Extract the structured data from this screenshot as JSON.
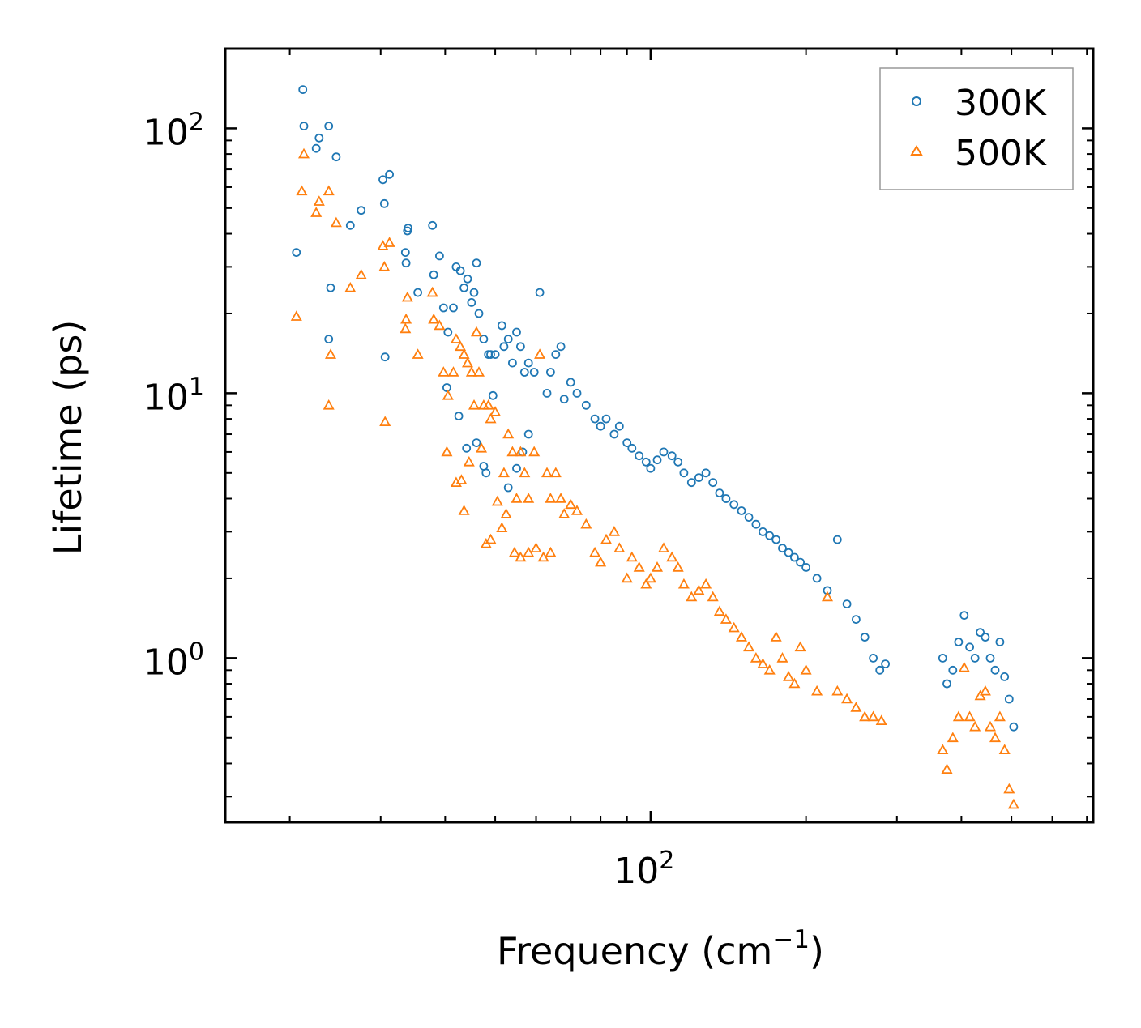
{
  "chart_data": {
    "type": "scatter",
    "xscale": "log",
    "yscale": "log",
    "xlabel": "Frequency (cm",
    "xlabel_sup": "−1",
    "xlabel_end": ")",
    "ylabel": "Lifetime (ps)",
    "xlim": [
      15,
      720
    ],
    "ylim": [
      0.24,
      200
    ],
    "x_major_ticks": [
      {
        "value": 100,
        "base": "10",
        "exp": "2"
      }
    ],
    "x_minor_ticks": [
      20,
      30,
      40,
      50,
      60,
      70,
      80,
      90,
      200,
      300,
      400,
      500,
      600,
      700
    ],
    "y_major_ticks": [
      {
        "value": 1,
        "base": "10",
        "exp": "0"
      },
      {
        "value": 10,
        "base": "10",
        "exp": "1"
      },
      {
        "value": 100,
        "base": "10",
        "exp": "2"
      }
    ],
    "y_minor_ticks": [
      0.3,
      0.4,
      0.5,
      0.6,
      0.7,
      0.8,
      0.9,
      2,
      3,
      4,
      5,
      6,
      7,
      8,
      9,
      20,
      30,
      40,
      50,
      60,
      70,
      80,
      90,
      200
    ],
    "legend_position": "top-right",
    "series": [
      {
        "name": "300K",
        "marker": "circle",
        "color": "#1f77b4",
        "points": [
          [
            21.2,
            140
          ],
          [
            21.3,
            102
          ],
          [
            22.5,
            84
          ],
          [
            22.8,
            92
          ],
          [
            23.8,
            102
          ],
          [
            24.6,
            78
          ],
          [
            26.2,
            43
          ],
          [
            27.5,
            49
          ],
          [
            30.3,
            64
          ],
          [
            30.5,
            52
          ],
          [
            31.2,
            67
          ],
          [
            33.8,
            41
          ],
          [
            33.9,
            42
          ],
          [
            20.6,
            34
          ],
          [
            24.0,
            25
          ],
          [
            23.8,
            16
          ],
          [
            30.6,
            13.7
          ],
          [
            33.6,
            31
          ],
          [
            33.5,
            34
          ],
          [
            35.4,
            24
          ],
          [
            37.8,
            43
          ],
          [
            38.0,
            28
          ],
          [
            39.0,
            33
          ],
          [
            39.7,
            21
          ],
          [
            40.3,
            10.5
          ],
          [
            40.5,
            17
          ],
          [
            41.5,
            21
          ],
          [
            42.0,
            30
          ],
          [
            42.8,
            29
          ],
          [
            43.5,
            25
          ],
          [
            44.2,
            27
          ],
          [
            45.0,
            22
          ],
          [
            45.5,
            24
          ],
          [
            46.0,
            31
          ],
          [
            46.5,
            20
          ],
          [
            47.5,
            16
          ],
          [
            48.5,
            14
          ],
          [
            49.0,
            14
          ],
          [
            50.0,
            14
          ],
          [
            51.5,
            18
          ],
          [
            52.0,
            15
          ],
          [
            53.0,
            16
          ],
          [
            54.0,
            13
          ],
          [
            55.0,
            17
          ],
          [
            56.0,
            15
          ],
          [
            57.0,
            12
          ],
          [
            58.0,
            13
          ],
          [
            59.5,
            12
          ],
          [
            61.0,
            24
          ],
          [
            63.0,
            10
          ],
          [
            64.0,
            12
          ],
          [
            65.5,
            14
          ],
          [
            67.0,
            15
          ],
          [
            68.0,
            9.5
          ],
          [
            70.0,
            11
          ],
          [
            72.0,
            10
          ],
          [
            75.0,
            9
          ],
          [
            78.0,
            8
          ],
          [
            80.0,
            7.5
          ],
          [
            82.0,
            8
          ],
          [
            85.0,
            7
          ],
          [
            87.0,
            7.5
          ],
          [
            90.0,
            6.5
          ],
          [
            92.0,
            6.2
          ],
          [
            95.0,
            5.8
          ],
          [
            98.0,
            5.5
          ],
          [
            100.0,
            5.2
          ],
          [
            103.0,
            5.6
          ],
          [
            106.0,
            6.0
          ],
          [
            110.0,
            5.8
          ],
          [
            113.0,
            5.5
          ],
          [
            116.0,
            5.0
          ],
          [
            120.0,
            4.6
          ],
          [
            124.0,
            4.8
          ],
          [
            128.0,
            5.0
          ],
          [
            132.0,
            4.6
          ],
          [
            136.0,
            4.2
          ],
          [
            140.0,
            4.0
          ],
          [
            145.0,
            3.8
          ],
          [
            150.0,
            3.6
          ],
          [
            155.0,
            3.4
          ],
          [
            160.0,
            3.2
          ],
          [
            165.0,
            3.0
          ],
          [
            170.0,
            2.9
          ],
          [
            175.0,
            2.8
          ],
          [
            180.0,
            2.6
          ],
          [
            185.0,
            2.5
          ],
          [
            190.0,
            2.4
          ],
          [
            195.0,
            2.3
          ],
          [
            200.0,
            2.2
          ],
          [
            210.0,
            2.0
          ],
          [
            220.0,
            1.8
          ],
          [
            230.0,
            2.8
          ],
          [
            240.0,
            1.6
          ],
          [
            250.0,
            1.4
          ],
          [
            260.0,
            1.2
          ],
          [
            270.0,
            1.0
          ],
          [
            278.0,
            0.9
          ],
          [
            285.0,
            0.95
          ],
          [
            42.5,
            8.2
          ],
          [
            44.0,
            6.2
          ],
          [
            46.0,
            6.5
          ],
          [
            47.5,
            5.3
          ],
          [
            48.0,
            5.0
          ],
          [
            49.5,
            9.8
          ],
          [
            53.0,
            4.4
          ],
          [
            55.0,
            5.2
          ],
          [
            56.5,
            6.0
          ],
          [
            58.0,
            7.0
          ],
          [
            368.0,
            1.0
          ],
          [
            375.0,
            0.8
          ],
          [
            385.0,
            0.9
          ],
          [
            395.0,
            1.15
          ],
          [
            405.0,
            1.45
          ],
          [
            415.0,
            1.1
          ],
          [
            425.0,
            1.0
          ],
          [
            435.0,
            1.25
          ],
          [
            445.0,
            1.2
          ],
          [
            455.0,
            1.0
          ],
          [
            465.0,
            0.9
          ],
          [
            475.0,
            1.15
          ],
          [
            485.0,
            0.85
          ],
          [
            495.0,
            0.7
          ],
          [
            505.0,
            0.55
          ]
        ]
      },
      {
        "name": "500K",
        "marker": "triangle",
        "color": "#ff7f0e",
        "points": [
          [
            21.3,
            80
          ],
          [
            21.1,
            58
          ],
          [
            22.5,
            48
          ],
          [
            22.8,
            53
          ],
          [
            23.8,
            58
          ],
          [
            24.6,
            44
          ],
          [
            26.2,
            25
          ],
          [
            27.5,
            28
          ],
          [
            30.3,
            36
          ],
          [
            30.5,
            30
          ],
          [
            31.2,
            37
          ],
          [
            33.8,
            23
          ],
          [
            20.6,
            19.5
          ],
          [
            24.0,
            14
          ],
          [
            23.8,
            9
          ],
          [
            30.6,
            7.8
          ],
          [
            33.6,
            19
          ],
          [
            33.5,
            17.5
          ],
          [
            35.4,
            14
          ],
          [
            37.8,
            24
          ],
          [
            38.0,
            19
          ],
          [
            39.0,
            18
          ],
          [
            39.7,
            12
          ],
          [
            40.3,
            6
          ],
          [
            40.5,
            9.8
          ],
          [
            41.5,
            12
          ],
          [
            42.0,
            16
          ],
          [
            42.8,
            15
          ],
          [
            43.5,
            14
          ],
          [
            44.2,
            13
          ],
          [
            45.0,
            12
          ],
          [
            45.5,
            9
          ],
          [
            46.0,
            17
          ],
          [
            46.5,
            12
          ],
          [
            47.5,
            9
          ],
          [
            48.5,
            9
          ],
          [
            49.0,
            8
          ],
          [
            50.0,
            8.5
          ],
          [
            51.5,
            3.1
          ],
          [
            52.0,
            5
          ],
          [
            53.0,
            7
          ],
          [
            54.0,
            6
          ],
          [
            55.0,
            4
          ],
          [
            56.0,
            6
          ],
          [
            57.0,
            5
          ],
          [
            58.0,
            4
          ],
          [
            59.5,
            6
          ],
          [
            61.0,
            14
          ],
          [
            63.0,
            5
          ],
          [
            64.0,
            4
          ],
          [
            65.5,
            5
          ],
          [
            67.0,
            4
          ],
          [
            68.0,
            3.5
          ],
          [
            70.0,
            3.8
          ],
          [
            72.0,
            3.6
          ],
          [
            75.0,
            3.2
          ],
          [
            78.0,
            2.5
          ],
          [
            80.0,
            2.3
          ],
          [
            82.0,
            2.8
          ],
          [
            85.0,
            3.0
          ],
          [
            87.0,
            2.6
          ],
          [
            90.0,
            2.0
          ],
          [
            92.0,
            2.4
          ],
          [
            95.0,
            2.2
          ],
          [
            98.0,
            1.9
          ],
          [
            100.0,
            2.0
          ],
          [
            103.0,
            2.2
          ],
          [
            106.0,
            2.6
          ],
          [
            110.0,
            2.4
          ],
          [
            113.0,
            2.2
          ],
          [
            116.0,
            1.9
          ],
          [
            120.0,
            1.7
          ],
          [
            124.0,
            1.8
          ],
          [
            128.0,
            1.9
          ],
          [
            132.0,
            1.7
          ],
          [
            136.0,
            1.5
          ],
          [
            140.0,
            1.4
          ],
          [
            145.0,
            1.3
          ],
          [
            150.0,
            1.2
          ],
          [
            155.0,
            1.1
          ],
          [
            160.0,
            1.0
          ],
          [
            165.0,
            0.95
          ],
          [
            170.0,
            0.9
          ],
          [
            175.0,
            1.2
          ],
          [
            180.0,
            1.0
          ],
          [
            185.0,
            0.85
          ],
          [
            190.0,
            0.8
          ],
          [
            195.0,
            1.1
          ],
          [
            200.0,
            0.9
          ],
          [
            210.0,
            0.75
          ],
          [
            220.0,
            1.7
          ],
          [
            230.0,
            0.75
          ],
          [
            240.0,
            0.7
          ],
          [
            250.0,
            0.65
          ],
          [
            260.0,
            0.6
          ],
          [
            270.0,
            0.6
          ],
          [
            280.0,
            0.58
          ],
          [
            42.0,
            4.6
          ],
          [
            43.0,
            4.7
          ],
          [
            43.5,
            3.6
          ],
          [
            44.5,
            5.5
          ],
          [
            47.0,
            6.2
          ],
          [
            48.0,
            2.7
          ],
          [
            49.0,
            2.8
          ],
          [
            50.5,
            3.9
          ],
          [
            52.5,
            3.5
          ],
          [
            54.5,
            2.5
          ],
          [
            56.0,
            2.4
          ],
          [
            58.0,
            2.5
          ],
          [
            60.0,
            2.6
          ],
          [
            62.0,
            2.4
          ],
          [
            64.0,
            2.5
          ],
          [
            368.0,
            0.45
          ],
          [
            375.0,
            0.38
          ],
          [
            385.0,
            0.5
          ],
          [
            395.0,
            0.6
          ],
          [
            405.0,
            0.92
          ],
          [
            415.0,
            0.6
          ],
          [
            425.0,
            0.55
          ],
          [
            435.0,
            0.72
          ],
          [
            445.0,
            0.75
          ],
          [
            455.0,
            0.55
          ],
          [
            465.0,
            0.5
          ],
          [
            475.0,
            0.6
          ],
          [
            485.0,
            0.45
          ],
          [
            495.0,
            0.32
          ],
          [
            505.0,
            0.28
          ]
        ]
      }
    ]
  }
}
